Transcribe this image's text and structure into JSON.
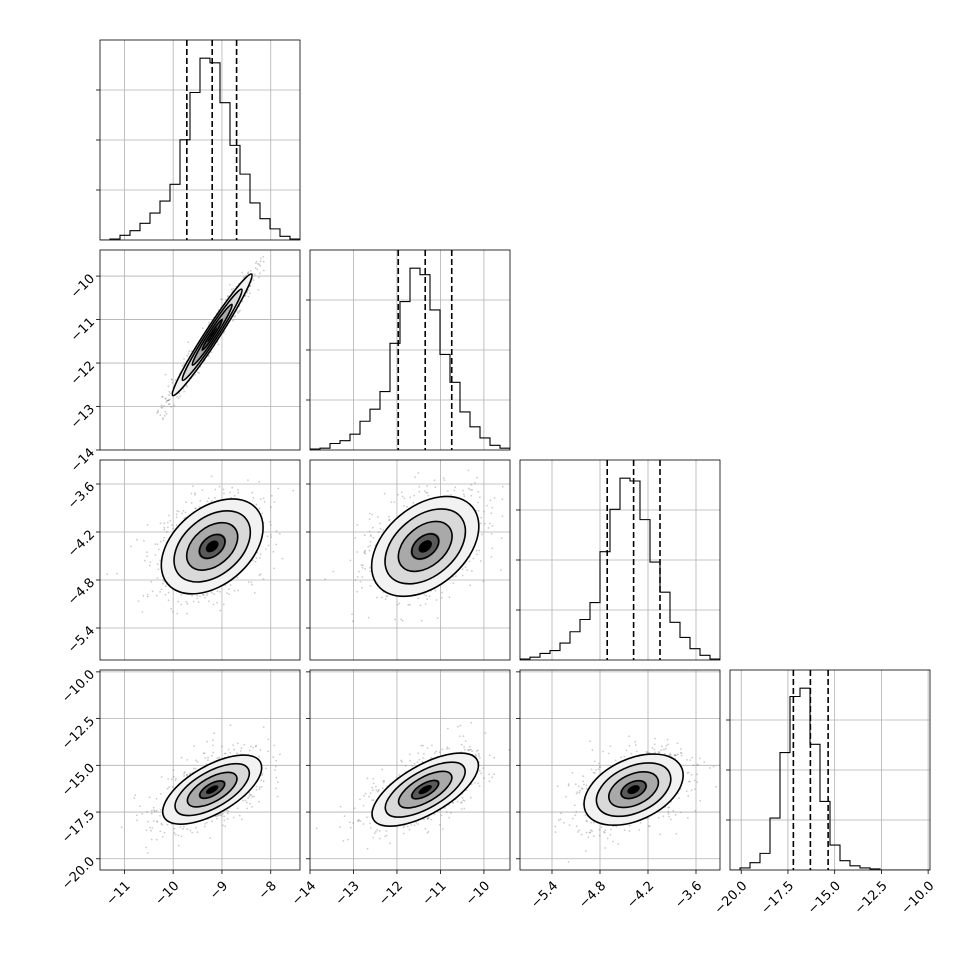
{
  "chart_data": {
    "type": "corner",
    "grid_lines": true,
    "parameters": [
      {
        "mean": -9.2,
        "sd": 0.5,
        "lim": [
          -11.5,
          -7.4
        ],
        "ticks": [
          -11,
          -10,
          -9,
          -8
        ],
        "tick_labels": [
          "−11",
          "−10",
          "−9",
          "−8"
        ],
        "quantiles": [
          -9.72,
          -9.2,
          -8.7
        ]
      },
      {
        "mean": -11.35,
        "sd": 0.62,
        "lim": [
          -14.0,
          -9.4
        ],
        "ticks": [
          -14,
          -13,
          -12,
          -11,
          -10
        ],
        "tick_labels": [
          "−14",
          "−13",
          "−12",
          "−11",
          "−10"
        ],
        "quantiles": [
          -11.97,
          -11.35,
          -10.74
        ]
      },
      {
        "mean": -4.38,
        "sd": 0.31,
        "lim": [
          -5.8,
          -3.3
        ],
        "ticks": [
          -5.4,
          -4.8,
          -4.2,
          -3.6
        ],
        "tick_labels": [
          "−5.4",
          "−4.8",
          "−4.2",
          "−3.6"
        ],
        "quantiles": [
          -4.71,
          -4.38,
          -4.05
        ]
      },
      {
        "mean": -16.3,
        "sd": 0.95,
        "lim": [
          -20.6,
          -9.9
        ],
        "ticks": [
          -20.0,
          -17.5,
          -15.0,
          -12.5,
          -10.0
        ],
        "tick_labels": [
          "−20.0",
          "−17.5",
          "−15.0",
          "−12.5",
          "−10.0"
        ],
        "quantiles": [
          -17.21,
          -16.3,
          -15.35
        ]
      }
    ],
    "histograms": [
      {
        "param": 0,
        "edges_start": -11.5,
        "bin_width": 0.205,
        "counts": [
          0,
          1,
          5,
          10,
          18,
          29,
          42,
          60,
          108,
          159,
          196,
          191,
          148,
          102,
          71,
          40,
          23,
          12,
          4,
          1
        ]
      },
      {
        "param": 1,
        "edges_start": -14.0,
        "bin_width": 0.23,
        "counts": [
          1,
          2,
          7,
          10,
          17,
          31,
          44,
          63,
          115,
          160,
          196,
          189,
          151,
          103,
          73,
          41,
          25,
          13,
          5,
          2
        ]
      },
      {
        "param": 2,
        "edges_start": -5.8,
        "bin_width": 0.125,
        "counts": [
          1,
          3,
          7,
          10,
          18,
          30,
          43,
          61,
          115,
          160,
          193,
          190,
          149,
          104,
          72,
          40,
          24,
          12,
          5,
          1
        ]
      },
      {
        "param": 3,
        "edges_start": -20.6,
        "bin_width": 0.535,
        "counts": [
          0,
          2,
          7,
          16,
          50,
          113,
          167,
          175,
          121,
          66,
          24,
          9,
          4,
          2,
          1,
          0,
          0,
          0,
          0,
          0
        ]
      }
    ],
    "pairs": [
      {
        "x": 0,
        "y": 1,
        "corr": 0.98,
        "tilt_deg": -57
      },
      {
        "x": 0,
        "y": 2,
        "corr": 0.4,
        "tilt_deg": -40
      },
      {
        "x": 1,
        "y": 2,
        "corr": 0.4,
        "tilt_deg": -40
      },
      {
        "x": 0,
        "y": 3,
        "corr": 0.65,
        "tilt_deg": -30
      },
      {
        "x": 1,
        "y": 3,
        "corr": 0.65,
        "tilt_deg": -30
      },
      {
        "x": 2,
        "y": 3,
        "corr": 0.4,
        "tilt_deg": -25
      }
    ],
    "contour_levels_sigma": [
      0.5,
      1.0,
      1.5,
      2.0
    ]
  }
}
